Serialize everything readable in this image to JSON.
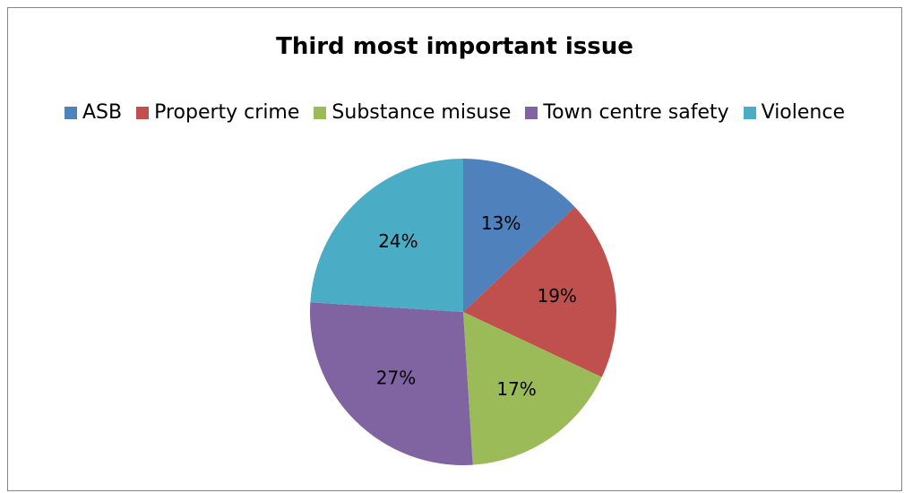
{
  "chart_data": {
    "type": "pie",
    "title": "Third most important issue",
    "categories": [
      "ASB",
      "Property crime",
      "Substance misuse",
      "Town centre safety",
      "Violence"
    ],
    "values": [
      13,
      19,
      17,
      27,
      24
    ],
    "labels": [
      "13%",
      "19%",
      "17%",
      "27%",
      "24%"
    ],
    "colors": [
      "#4F81BD",
      "#C0504D",
      "#9BBB59",
      "#8064A2",
      "#4BACC6"
    ],
    "legend_position": "top"
  }
}
